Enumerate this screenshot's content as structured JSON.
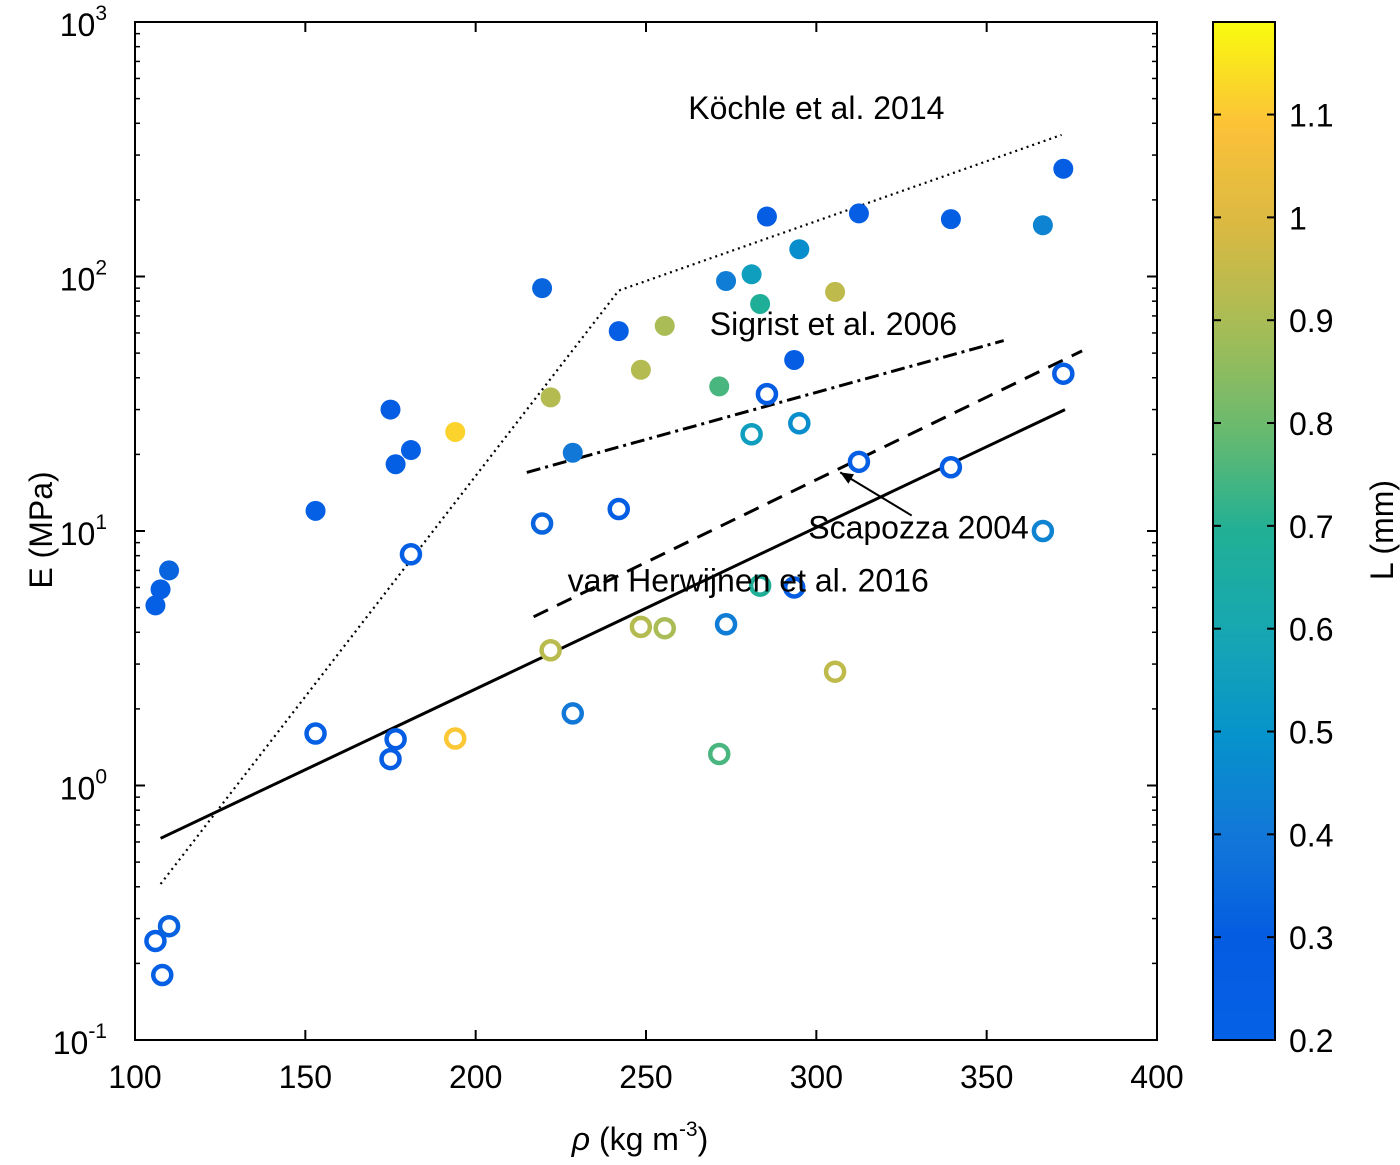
{
  "chart_data": {
    "type": "scatter",
    "xlabel": {
      "symbol": "ρ",
      "text": " (kg m",
      "sup": "-3",
      "close": ")"
    },
    "ylabel": "E (MPa)",
    "xlim": [
      100,
      400
    ],
    "xscale": "linear",
    "ylim": [
      0.1,
      1000
    ],
    "yscale": "log",
    "x_ticks": [
      100,
      150,
      200,
      250,
      300,
      350,
      400
    ],
    "x_tick_labels": [
      "100",
      "150",
      "200",
      "250",
      "300",
      "350",
      "400"
    ],
    "y_ticks": [
      {
        "value": 0.1,
        "base": "10",
        "exp": "-1"
      },
      {
        "value": 1,
        "base": "10",
        "exp": "0"
      },
      {
        "value": 10,
        "base": "10",
        "exp": "1"
      },
      {
        "value": 100,
        "base": "10",
        "exp": "2"
      },
      {
        "value": 1000,
        "base": "10",
        "exp": "3"
      }
    ],
    "colorbar": {
      "label": "L (mm)",
      "range": [
        0.2,
        1.19
      ],
      "ticks": [
        0.2,
        0.3,
        0.4,
        0.5,
        0.6,
        0.7,
        0.8,
        0.9,
        1,
        1.1
      ],
      "tick_labels": [
        "0.2",
        "0.3",
        "0.4",
        "0.5",
        "0.6",
        "0.7",
        "0.8",
        "0.9",
        "1",
        "1.1"
      ],
      "colormap": "parula"
    },
    "series": [
      {
        "name": "filled",
        "marker": "filled-circle",
        "points": [
          {
            "x": 106,
            "y": 5.1,
            "L": 0.22
          },
          {
            "x": 107.5,
            "y": 5.9,
            "L": 0.24
          },
          {
            "x": 110,
            "y": 7.0,
            "L": 0.33
          },
          {
            "x": 153,
            "y": 12,
            "L": 0.22
          },
          {
            "x": 175,
            "y": 30,
            "L": 0.27
          },
          {
            "x": 176.5,
            "y": 18.3,
            "L": 0.24
          },
          {
            "x": 181,
            "y": 20.8,
            "L": 0.24
          },
          {
            "x": 194,
            "y": 24.5,
            "L": 1.12
          },
          {
            "x": 219.5,
            "y": 90,
            "L": 0.33
          },
          {
            "x": 222,
            "y": 33.5,
            "L": 0.92
          },
          {
            "x": 228.5,
            "y": 20.3,
            "L": 0.4
          },
          {
            "x": 242,
            "y": 61,
            "L": 0.25
          },
          {
            "x": 248.5,
            "y": 43,
            "L": 0.92
          },
          {
            "x": 255.5,
            "y": 64,
            "L": 0.9
          },
          {
            "x": 271.5,
            "y": 37,
            "L": 0.75
          },
          {
            "x": 273.5,
            "y": 96,
            "L": 0.42
          },
          {
            "x": 281,
            "y": 102,
            "L": 0.55
          },
          {
            "x": 283.5,
            "y": 78,
            "L": 0.68
          },
          {
            "x": 285.5,
            "y": 172,
            "L": 0.27
          },
          {
            "x": 293.5,
            "y": 47,
            "L": 0.27
          },
          {
            "x": 295,
            "y": 128,
            "L": 0.48
          },
          {
            "x": 305.5,
            "y": 87,
            "L": 0.94
          },
          {
            "x": 312.5,
            "y": 177,
            "L": 0.25
          },
          {
            "x": 339.5,
            "y": 168,
            "L": 0.26
          },
          {
            "x": 366.5,
            "y": 159,
            "L": 0.44
          },
          {
            "x": 372.5,
            "y": 265,
            "L": 0.27
          }
        ]
      },
      {
        "name": "open",
        "marker": "open-circle",
        "points": [
          {
            "x": 106,
            "y": 0.245,
            "L": 0.25
          },
          {
            "x": 108,
            "y": 0.18,
            "L": 0.24
          },
          {
            "x": 110,
            "y": 0.28,
            "L": 0.32
          },
          {
            "x": 153,
            "y": 1.6,
            "L": 0.24
          },
          {
            "x": 175,
            "y": 1.27,
            "L": 0.27
          },
          {
            "x": 176.5,
            "y": 1.52,
            "L": 0.27
          },
          {
            "x": 181,
            "y": 8.1,
            "L": 0.24
          },
          {
            "x": 194,
            "y": 1.53,
            "L": 1.1
          },
          {
            "x": 219.5,
            "y": 10.7,
            "L": 0.33
          },
          {
            "x": 222,
            "y": 3.4,
            "L": 0.93
          },
          {
            "x": 228.5,
            "y": 1.92,
            "L": 0.4
          },
          {
            "x": 242,
            "y": 12.2,
            "L": 0.26
          },
          {
            "x": 248.5,
            "y": 4.2,
            "L": 0.92
          },
          {
            "x": 255.5,
            "y": 4.15,
            "L": 0.9
          },
          {
            "x": 271.5,
            "y": 1.33,
            "L": 0.75
          },
          {
            "x": 273.5,
            "y": 4.3,
            "L": 0.42
          },
          {
            "x": 281,
            "y": 24,
            "L": 0.55
          },
          {
            "x": 283.5,
            "y": 6.1,
            "L": 0.68
          },
          {
            "x": 285.5,
            "y": 34.5,
            "L": 0.27
          },
          {
            "x": 293.5,
            "y": 6.0,
            "L": 0.27
          },
          {
            "x": 295,
            "y": 26.5,
            "L": 0.48
          },
          {
            "x": 305.5,
            "y": 2.8,
            "L": 0.94
          },
          {
            "x": 312.5,
            "y": 18.7,
            "L": 0.25
          },
          {
            "x": 339.5,
            "y": 17.8,
            "L": 0.26
          },
          {
            "x": 366.5,
            "y": 10,
            "L": 0.44
          },
          {
            "x": 372.5,
            "y": 41.5,
            "L": 0.27
          }
        ]
      }
    ],
    "reference_lines": [
      {
        "name": "Köchle et al. 2014",
        "style": "dotted",
        "points": [
          {
            "x": 107.5,
            "y": 0.41
          },
          {
            "x": 242,
            "y": 88
          },
          {
            "x": 372,
            "y": 360
          }
        ]
      },
      {
        "name": "Sigrist et al. 2006",
        "style": "dashdot",
        "points": [
          {
            "x": 215,
            "y": 17
          },
          {
            "x": 355,
            "y": 56
          }
        ]
      },
      {
        "name": "Scapozza 2004",
        "style": "dashed",
        "points": [
          {
            "x": 217,
            "y": 4.6
          },
          {
            "x": 378,
            "y": 51
          }
        ]
      },
      {
        "name": "van Herwijnen et al. 2016",
        "style": "solid",
        "points": [
          {
            "x": 107.5,
            "y": 0.62
          },
          {
            "x": 373,
            "y": 30
          }
        ]
      }
    ],
    "annotations": [
      {
        "text": "Köchle et al. 2014",
        "x": 300,
        "y": 460
      },
      {
        "text": "Sigrist et al. 2006",
        "x": 305,
        "y": 65
      },
      {
        "text": "Scapozza 2004",
        "x": 330,
        "y": 10.3
      },
      {
        "text": "van Herwijnen et al. 2016",
        "x": 280,
        "y": 6.4
      }
    ],
    "arrow": {
      "from": {
        "x": 328,
        "y": 11.5
      },
      "to": {
        "x": 307,
        "y": 17
      }
    }
  }
}
